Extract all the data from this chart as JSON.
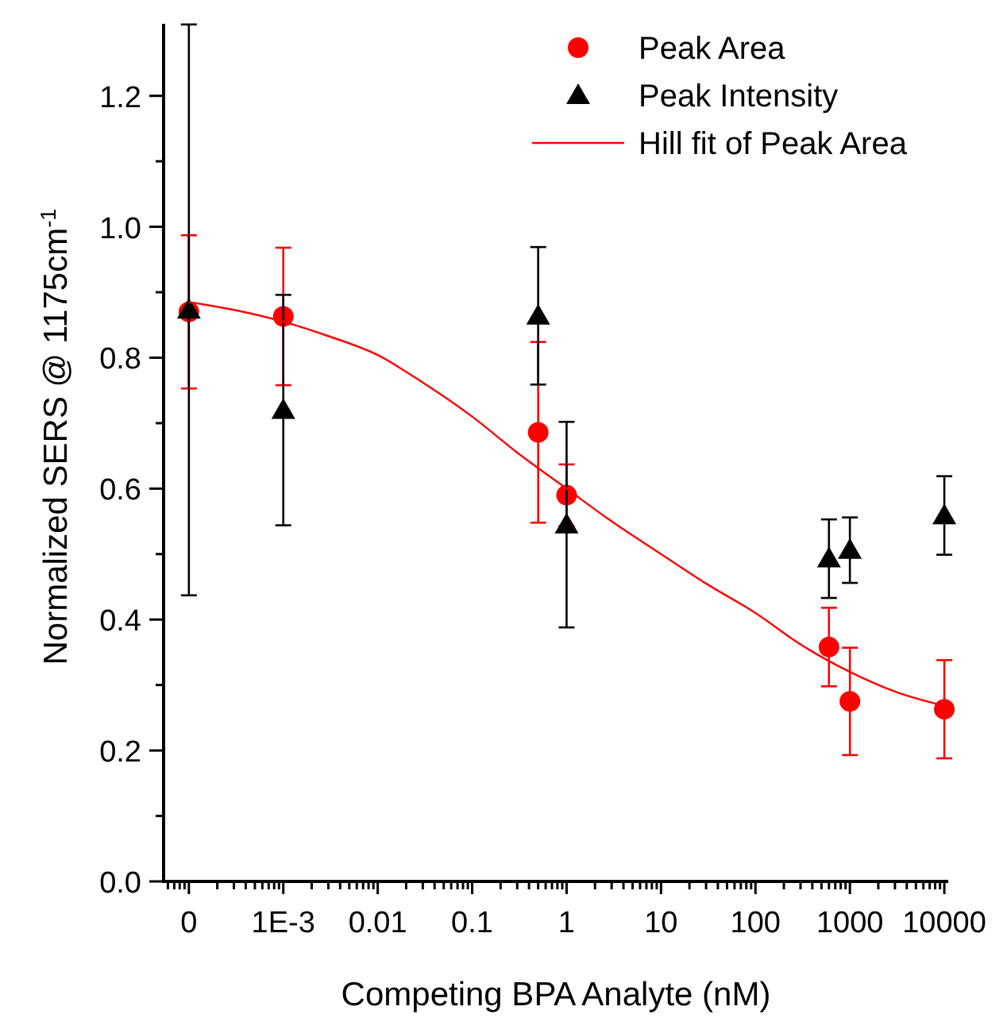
{
  "chart_data": {
    "type": "scatter",
    "xlabel": "Competing BPA Analyte (nM)",
    "ylabel": "Normalized SERS @ 1175cm$^{-1}$",
    "log": "x",
    "xlim": [
      5.4e-05,
      11000
    ],
    "ylim": [
      0,
      1.31
    ],
    "xticks": [
      {
        "value": 6e-05,
        "label": null
      },
      {
        "value": 7e-05,
        "label": null
      },
      {
        "value": 8e-05,
        "label": null
      },
      {
        "value": 9e-05,
        "label": null
      },
      {
        "value": 0.0001,
        "label": "0"
      },
      {
        "value": 0.0002,
        "label": null
      },
      {
        "value": 0.0003,
        "label": null
      },
      {
        "value": 0.0004,
        "label": null
      },
      {
        "value": 0.0005,
        "label": null
      },
      {
        "value": 0.0006,
        "label": null
      },
      {
        "value": 0.0007,
        "label": null
      },
      {
        "value": 0.0008,
        "label": null
      },
      {
        "value": 0.0009,
        "label": null
      },
      {
        "value": 0.001,
        "label": "1E-3"
      },
      {
        "value": 0.002,
        "label": null
      },
      {
        "value": 0.003,
        "label": null
      },
      {
        "value": 0.004,
        "label": null
      },
      {
        "value": 0.005,
        "label": null
      },
      {
        "value": 0.006,
        "label": null
      },
      {
        "value": 0.007,
        "label": null
      },
      {
        "value": 0.008,
        "label": null
      },
      {
        "value": 0.009,
        "label": null
      },
      0.01,
      {
        "value": 0.02,
        "label": null
      },
      {
        "value": 0.03,
        "label": null
      },
      {
        "value": 0.04,
        "label": null
      },
      {
        "value": 0.05,
        "label": null
      },
      {
        "value": 0.06,
        "label": null
      },
      {
        "value": 0.07,
        "label": null
      },
      {
        "value": 0.08,
        "label": null
      },
      {
        "value": 0.09,
        "label": null
      },
      0.1,
      {
        "value": 0.2,
        "label": null
      },
      {
        "value": 0.3,
        "label": null
      },
      {
        "value": 0.4,
        "label": null
      },
      {
        "value": 0.5,
        "label": null
      },
      {
        "value": 0.6,
        "label": null
      },
      {
        "value": 0.7,
        "label": null
      },
      {
        "value": 0.8,
        "label": null
      },
      {
        "value": 0.9,
        "label": null
      },
      1,
      {
        "value": 2,
        "label": null
      },
      {
        "value": 3,
        "label": null
      },
      {
        "value": 4,
        "label": null
      },
      {
        "value": 5,
        "label": null
      },
      {
        "value": 6,
        "label": null
      },
      {
        "value": 7,
        "label": null
      },
      {
        "value": 8,
        "label": null
      },
      {
        "value": 9,
        "label": null
      },
      10,
      {
        "value": 20,
        "label": null
      },
      {
        "value": 30,
        "label": null
      },
      {
        "value": 40,
        "label": null
      },
      {
        "value": 50,
        "label": null
      },
      {
        "value": 60,
        "label": null
      },
      {
        "value": 70,
        "label": null
      },
      {
        "value": 80,
        "label": null
      },
      {
        "value": 90,
        "label": null
      },
      100,
      {
        "value": 200,
        "label": null
      },
      {
        "value": 300,
        "label": null
      },
      {
        "value": 400,
        "label": null
      },
      {
        "value": 500,
        "label": null
      },
      {
        "value": 600,
        "label": null
      },
      {
        "value": 700,
        "label": null
      },
      {
        "value": 800,
        "label": null
      },
      {
        "value": 900,
        "label": null
      },
      1000,
      {
        "value": 2000,
        "label": null
      },
      {
        "value": 3000,
        "label": null
      },
      {
        "value": 4000,
        "label": null
      },
      {
        "value": 5000,
        "label": null
      },
      {
        "value": 6000,
        "label": null
      },
      {
        "value": 7000,
        "label": null
      },
      {
        "value": 8000,
        "label": null
      },
      {
        "value": 9000,
        "label": null
      },
      10000
    ],
    "yticks": [
      {
        "value": 0,
        "label": "0.0"
      },
      {
        "value": 0.1,
        "label": null
      },
      {
        "value": 0.2,
        "label": "0.2"
      },
      {
        "value": 0.3,
        "label": null
      },
      {
        "value": 0.4,
        "label": "0.4"
      },
      {
        "value": 0.5,
        "label": null
      },
      {
        "value": 0.6,
        "label": "0.6"
      },
      {
        "value": 0.7,
        "label": null
      },
      {
        "value": 0.8,
        "label": "0.8"
      },
      {
        "value": 0.9,
        "label": null
      },
      {
        "value": 1,
        "label": "1.0"
      },
      {
        "value": 1.1,
        "label": null
      },
      {
        "value": 1.2,
        "label": "1.2"
      }
    ],
    "grid": false,
    "legend": "top right",
    "series": [
      {
        "name": "Peak Area",
        "marker": "circle",
        "color": "#ff0000",
        "x": [
          0.0001,
          0.001,
          0.5,
          1,
          600,
          1000,
          10000
        ],
        "values": [
          0.87,
          0.863,
          0.686,
          0.59,
          0.358,
          0.275,
          0.263
        ],
        "errors": [
          0.117,
          0.105,
          0.138,
          0.047,
          0.06,
          0.082,
          0.075
        ]
      },
      {
        "name": "Peak Intensity",
        "type": "scatter",
        "marker": "triangle",
        "color": "#000000",
        "x": [
          0.0001,
          0.001,
          0.5,
          1,
          600,
          1000,
          10000
        ],
        "values": [
          0.873,
          0.72,
          0.864,
          0.545,
          0.493,
          0.506,
          0.559
        ],
        "errors": [
          0.436,
          0.176,
          0.105,
          0.157,
          0.06,
          0.05,
          0.06
        ]
      },
      {
        "name": "Hill fit of Peak Area",
        "type": "line",
        "marker": "none",
        "line_style": "solid",
        "color": "#ff0000",
        "x": [
          0.0001,
          0.0003,
          0.001,
          0.003,
          0.01,
          0.03,
          0.1,
          0.3,
          1,
          3,
          10,
          30,
          100,
          300,
          1000,
          3000,
          10000
        ],
        "values": [
          0.885,
          0.873,
          0.855,
          0.833,
          0.804,
          0.762,
          0.71,
          0.655,
          0.6,
          0.55,
          0.5,
          0.455,
          0.41,
          0.362,
          0.32,
          0.29,
          0.268
        ]
      }
    ]
  }
}
